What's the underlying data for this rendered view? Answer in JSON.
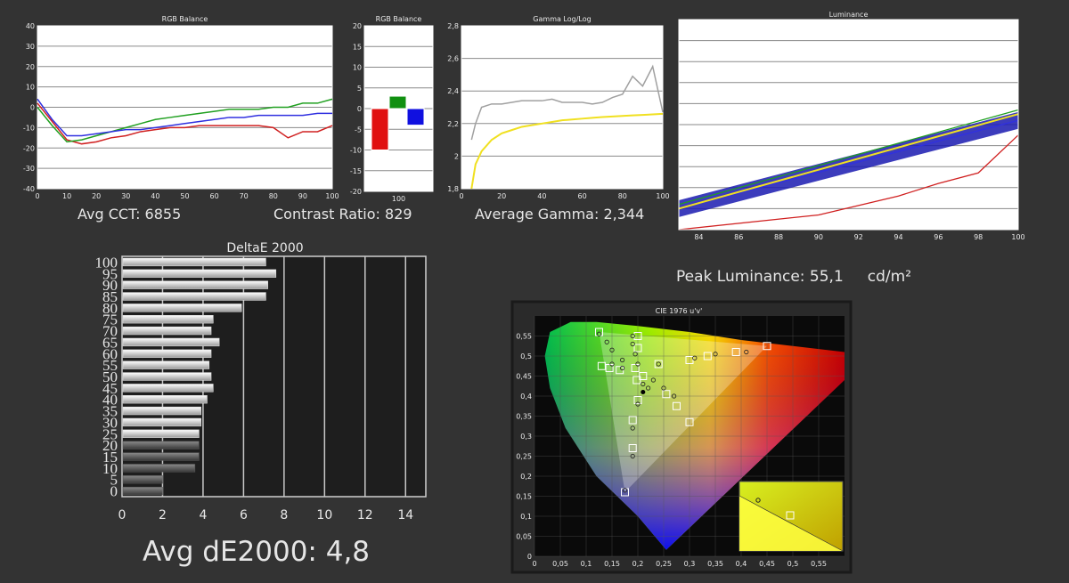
{
  "labels": {
    "avg_cct": "Avg CCT: 6855",
    "contrast": "Contrast Ratio: 829",
    "avg_gamma": "Average Gamma: 2,344",
    "peak_lum": "Peak Luminance: 55,1     cd/m²",
    "avg_de": "Avg dE2000: 4,8"
  },
  "chart_data": [
    {
      "id": "rgb-balance-line",
      "type": "line",
      "title": "RGB Balance",
      "ylim": [
        -40,
        40
      ],
      "yticks": [
        -40,
        -30,
        -20,
        -10,
        0,
        10,
        20,
        30,
        40
      ],
      "xlim": [
        0,
        100
      ],
      "xticks": [
        0,
        10,
        20,
        30,
        40,
        50,
        60,
        70,
        80,
        90,
        100
      ],
      "x": [
        0,
        5,
        10,
        15,
        20,
        25,
        30,
        35,
        40,
        45,
        50,
        55,
        60,
        65,
        70,
        75,
        80,
        85,
        90,
        95,
        100
      ],
      "series": [
        {
          "color": "#d02020",
          "values": [
            2,
            -7,
            -16,
            -18,
            -17,
            -15,
            -14,
            -12,
            -11,
            -10,
            -10,
            -9,
            -9,
            -9,
            -9,
            -9,
            -10,
            -15,
            -12,
            -12,
            -9
          ]
        },
        {
          "color": "#20a020",
          "values": [
            0,
            -9,
            -17,
            -16,
            -14,
            -12,
            -10,
            -8,
            -6,
            -5,
            -4,
            -3,
            -2,
            -1,
            -1,
            -1,
            0,
            0,
            2,
            2,
            4
          ]
        },
        {
          "color": "#3030e0",
          "values": [
            4,
            -6,
            -14,
            -14,
            -13,
            -12,
            -11,
            -11,
            -10,
            -9,
            -8,
            -7,
            -6,
            -5,
            -5,
            -4,
            -4,
            -4,
            -4,
            -3,
            -3
          ]
        }
      ],
      "grid": true
    },
    {
      "id": "rgb-balance-bar",
      "type": "bar",
      "title": "RGB Balance",
      "ylim": [
        -20,
        20
      ],
      "yticks": [
        -20,
        -15,
        -10,
        -5,
        0,
        5,
        10,
        15,
        20
      ],
      "xticks": [
        100
      ],
      "series": [
        {
          "color": "#e01010",
          "values": [
            -10
          ]
        },
        {
          "color": "#109010",
          "values": [
            3
          ]
        },
        {
          "color": "#1010e0",
          "values": [
            -4
          ]
        }
      ],
      "grid": true
    },
    {
      "id": "gamma",
      "type": "line",
      "title": "Gamma Log/Log",
      "ylim": [
        1.8,
        2.8
      ],
      "yticks": [
        1.8,
        2,
        2.2,
        2.4,
        2.6,
        2.8
      ],
      "ytick_labels": [
        "1,8",
        "2",
        "2,2",
        "2,4",
        "2,6",
        "2,8"
      ],
      "xlim": [
        0,
        100
      ],
      "xticks": [
        0,
        20,
        40,
        60,
        80,
        100
      ],
      "x": [
        5,
        7,
        10,
        15,
        20,
        25,
        30,
        35,
        40,
        45,
        50,
        55,
        60,
        65,
        70,
        75,
        80,
        85,
        90,
        95,
        100
      ],
      "series": [
        {
          "color": "#a0a0a0",
          "values": [
            2.1,
            2.2,
            2.3,
            2.32,
            2.32,
            2.33,
            2.34,
            2.34,
            2.34,
            2.35,
            2.33,
            2.33,
            2.33,
            2.32,
            2.33,
            2.36,
            2.38,
            2.49,
            2.43,
            2.55,
            2.27
          ]
        },
        {
          "color": "#f0e020",
          "values": [
            1.8,
            1.95,
            2.03,
            2.1,
            2.14,
            2.16,
            2.18,
            2.19,
            2.2,
            2.21,
            2.22,
            2.225,
            2.23,
            2.235,
            2.24,
            2.243,
            2.247,
            2.25,
            2.253,
            2.256,
            2.26
          ]
        }
      ],
      "grid": true
    },
    {
      "id": "luminance",
      "type": "line",
      "title": "Luminance",
      "xlim": [
        83,
        100
      ],
      "xticks": [
        84,
        86,
        88,
        90,
        92,
        94,
        96,
        98,
        100
      ],
      "ylim": [
        0,
        100
      ],
      "series": [
        {
          "color": "#20a020",
          "values_at": [
            [
              83,
              12
            ],
            [
              100,
              57
            ]
          ]
        },
        {
          "color": "#3030e0",
          "values_at": [
            [
              83,
              10
            ],
            [
              100,
              52
            ]
          ]
        },
        {
          "color": "#f0e020",
          "values_at": [
            [
              83,
              10
            ],
            [
              100,
              55
            ]
          ]
        },
        {
          "color": "#d02020",
          "values_at": [
            [
              83,
              0
            ],
            [
              90,
              7
            ],
            [
              94,
              16
            ],
            [
              96,
              22
            ],
            [
              98,
              27
            ],
            [
              100,
              45
            ]
          ]
        }
      ],
      "grid": true
    },
    {
      "id": "deltae",
      "type": "bar",
      "title": "DeltaE 2000",
      "orientation": "horizontal",
      "xlim": [
        0,
        15
      ],
      "xticks": [
        0,
        2,
        4,
        6,
        8,
        10,
        12,
        14
      ],
      "ytick_labels": [
        "0",
        "5",
        "10",
        "15",
        "20",
        "25",
        "30",
        "35",
        "40",
        "45",
        "50",
        "55",
        "60",
        "65",
        "70",
        "75",
        "80",
        "85",
        "90",
        "95",
        "100"
      ],
      "values": [
        2.0,
        2.0,
        3.6,
        3.8,
        3.8,
        3.8,
        3.9,
        3.9,
        4.2,
        4.5,
        4.4,
        4.3,
        4.4,
        4.8,
        4.4,
        4.5,
        5.9,
        7.1,
        7.2,
        7.6,
        7.1
      ],
      "grid": true
    },
    {
      "id": "cie",
      "type": "scatter",
      "title": "CIE 1976 u'v'",
      "xlim": [
        0,
        0.6
      ],
      "ylim": [
        0,
        0.6
      ],
      "xticks": [
        0,
        0.05,
        0.1,
        0.15,
        0.2,
        0.25,
        0.3,
        0.35,
        0.4,
        0.45,
        0.5,
        0.55
      ],
      "xtick_labels": [
        "0",
        "0,05",
        "0,1",
        "0,15",
        "0,2",
        "0,25",
        "0,3",
        "0,35",
        "0,4",
        "0,45",
        "0,5",
        "0,55"
      ],
      "yticks": [
        0,
        0.05,
        0.1,
        0.15,
        0.2,
        0.25,
        0.3,
        0.35,
        0.4,
        0.45,
        0.5,
        0.55
      ],
      "ytick_labels": [
        "0",
        "0,05",
        "0,1",
        "0,15",
        "0,2",
        "0,25",
        "0,3",
        "0,35",
        "0,4",
        "0,45",
        "0,5",
        "0,55"
      ],
      "targets": [
        [
          0.125,
          0.56
        ],
        [
          0.13,
          0.475
        ],
        [
          0.145,
          0.47
        ],
        [
          0.165,
          0.465
        ],
        [
          0.195,
          0.47
        ],
        [
          0.198,
          0.44
        ],
        [
          0.2,
          0.52
        ],
        [
          0.2,
          0.55
        ],
        [
          0.21,
          0.45
        ],
        [
          0.24,
          0.48
        ],
        [
          0.3,
          0.49
        ],
        [
          0.335,
          0.5
        ],
        [
          0.39,
          0.51
        ],
        [
          0.45,
          0.525
        ],
        [
          0.255,
          0.405
        ],
        [
          0.275,
          0.375
        ],
        [
          0.3,
          0.335
        ],
        [
          0.2,
          0.39
        ],
        [
          0.19,
          0.34
        ],
        [
          0.19,
          0.27
        ],
        [
          0.175,
          0.16
        ]
      ],
      "measured": [
        [
          0.125,
          0.555
        ],
        [
          0.14,
          0.535
        ],
        [
          0.15,
          0.515
        ],
        [
          0.17,
          0.49
        ],
        [
          0.19,
          0.55
        ],
        [
          0.19,
          0.53
        ],
        [
          0.195,
          0.505
        ],
        [
          0.2,
          0.48
        ],
        [
          0.15,
          0.48
        ],
        [
          0.17,
          0.47
        ],
        [
          0.23,
          0.44
        ],
        [
          0.25,
          0.42
        ],
        [
          0.27,
          0.4
        ],
        [
          0.24,
          0.48
        ],
        [
          0.31,
          0.495
        ],
        [
          0.35,
          0.505
        ],
        [
          0.41,
          0.51
        ],
        [
          0.21,
          0.43
        ],
        [
          0.22,
          0.42
        ],
        [
          0.2,
          0.38
        ],
        [
          0.19,
          0.32
        ],
        [
          0.19,
          0.25
        ],
        [
          0.175,
          0.165
        ]
      ],
      "white_point": [
        0.21,
        0.41
      ],
      "grid": true
    }
  ]
}
